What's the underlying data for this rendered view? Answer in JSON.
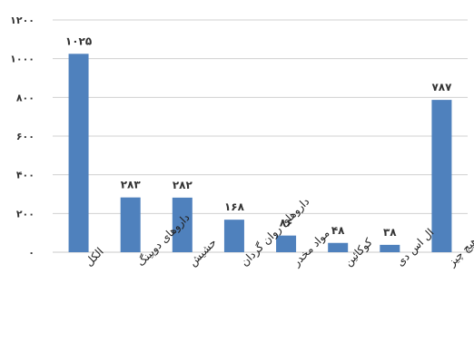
{
  "chart_data": {
    "type": "bar",
    "categories": [
      "الکل",
      "دارو‌های دوپینگ",
      "حشیش",
      "دارو‌های روان گردان",
      "مواد مخدر",
      "کوکائین",
      "ال اس دی",
      "هیچ چیز"
    ],
    "values": [
      1025,
      283,
      282,
      168,
      86,
      48,
      38,
      787
    ],
    "value_labels": [
      "۱۰۲۵",
      "۲۸۳",
      "۲۸۲",
      "۱۶۸",
      "۸۶",
      "۴۸",
      "۳۸",
      "۷۸۷"
    ],
    "ylim": [
      0,
      1200
    ],
    "y_ticks": [
      0,
      200,
      400,
      600,
      800,
      1000,
      1200
    ],
    "y_tick_labels": [
      "۰",
      "۲۰۰",
      "۴۰۰",
      "۶۰۰",
      "۸۰۰",
      "۱۰۰۰",
      "۱۲۰۰"
    ],
    "grid": true,
    "legend": "none",
    "bar_color": "#4f81bd",
    "grid_color": "#d0d0d0"
  }
}
